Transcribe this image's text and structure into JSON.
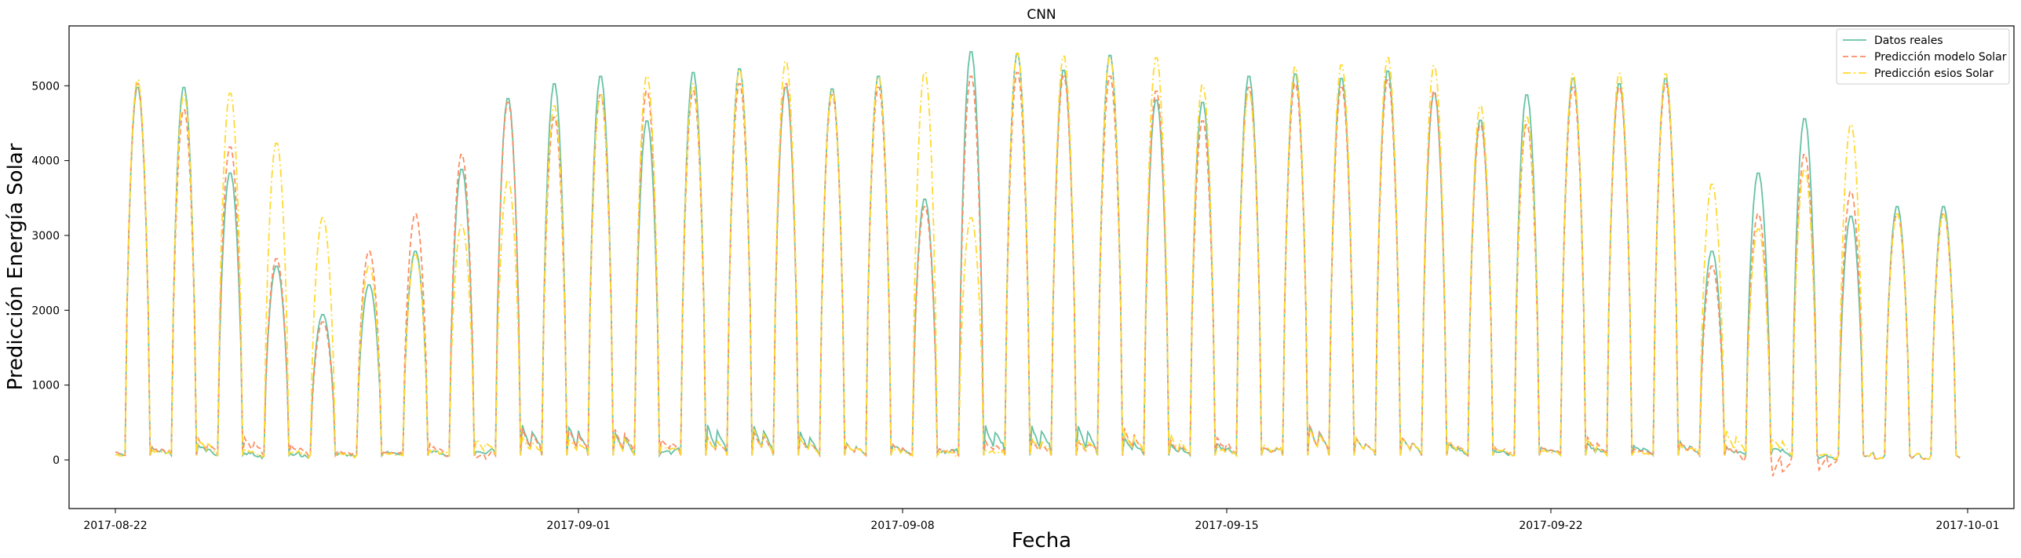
{
  "chart_data": {
    "type": "line",
    "title": "CNN",
    "xlabel": "Fecha",
    "ylabel": "Predicción Energía Solar",
    "x_range": [
      "2017-08-21",
      "2017-10-02"
    ],
    "ylim": [
      -650,
      5800
    ],
    "x_ticks": [
      "2017-08-22",
      "2017-09-01",
      "2017-09-08",
      "2017-09-15",
      "2017-09-22",
      "2017-10-01"
    ],
    "y_ticks": [
      0,
      1000,
      2000,
      3000,
      4000,
      5000
    ],
    "x_start": "2017-08-22",
    "x_end": "2017-09-30",
    "grid": false,
    "legend_position": "top-right",
    "day_values": {
      "dates": [
        "2017-08-22",
        "2017-08-23",
        "2017-08-24",
        "2017-08-25",
        "2017-08-26",
        "2017-08-27",
        "2017-08-28",
        "2017-08-29",
        "2017-08-30",
        "2017-08-31",
        "2017-09-01",
        "2017-09-02",
        "2017-09-03",
        "2017-09-04",
        "2017-09-05",
        "2017-09-06",
        "2017-09-07",
        "2017-09-08",
        "2017-09-09",
        "2017-09-10",
        "2017-09-11",
        "2017-09-12",
        "2017-09-13",
        "2017-09-14",
        "2017-09-15",
        "2017-09-16",
        "2017-09-17",
        "2017-09-18",
        "2017-09-19",
        "2017-09-20",
        "2017-09-21",
        "2017-09-22",
        "2017-09-23",
        "2017-09-24",
        "2017-09-25",
        "2017-09-26",
        "2017-09-27",
        "2017-09-28",
        "2017-09-29",
        "2017-09-30"
      ],
      "peak_real": [
        5000,
        5000,
        3850,
        2600,
        1950,
        2350,
        2800,
        3900,
        4850,
        5050,
        5150,
        4550,
        5200,
        5250,
        5000,
        4980,
        5150,
        3500,
        5480,
        5450,
        5230,
        5430,
        4830,
        4800,
        5150,
        5180,
        5120,
        5220,
        4920,
        4560,
        4900,
        5120,
        5050,
        5120,
        2800,
        3850,
        4580,
        3270,
        3400,
        3400
      ],
      "peak_model": [
        5050,
        4700,
        4200,
        2700,
        1850,
        2800,
        3300,
        4100,
        4800,
        4600,
        4900,
        4950,
        4950,
        5050,
        5050,
        4900,
        5000,
        3400,
        5150,
        5200,
        5150,
        5150,
        4950,
        4550,
        5000,
        5050,
        5000,
        5100,
        4950,
        4500,
        4500,
        5000,
        5000,
        5050,
        2600,
        3300,
        4100,
        3600,
        3300,
        3300
      ],
      "peak_esios": [
        5100,
        4900,
        4920,
        4250,
        3250,
        2600,
        2750,
        3150,
        3750,
        4750,
        4900,
        5150,
        5050,
        5230,
        5350,
        4950,
        5130,
        5200,
        3250,
        5460,
        5420,
        5400,
        5400,
        5030,
        4950,
        5270,
        5300,
        5400,
        5290,
        4750,
        4600,
        5180,
        5190,
        5180,
        3700,
        3100,
        3900,
        4500,
        3300,
        3300
      ],
      "night_real": [
        150,
        200,
        50,
        50,
        50,
        100,
        100,
        100,
        500,
        500,
        400,
        100,
        500,
        500,
        400,
        200,
        200,
        100,
        500,
        500,
        500,
        300,
        200,
        200,
        150,
        500,
        300,
        300,
        200,
        100,
        150,
        200,
        200,
        250,
        150,
        150,
        0,
        0,
        0,
        0
      ],
      "night_model": [
        150,
        300,
        300,
        200,
        100,
        100,
        200,
        0,
        450,
        450,
        450,
        300,
        300,
        400,
        300,
        200,
        200,
        150,
        250,
        250,
        250,
        450,
        250,
        300,
        150,
        500,
        300,
        300,
        250,
        150,
        150,
        300,
        150,
        250,
        150,
        -280,
        -180,
        0,
        0,
        0
      ],
      "night_esios": [
        100,
        300,
        100,
        100,
        50,
        50,
        100,
        300,
        300,
        300,
        350,
        200,
        300,
        450,
        300,
        200,
        150,
        100,
        100,
        300,
        300,
        400,
        350,
        150,
        200,
        450,
        300,
        300,
        250,
        150,
        100,
        250,
        100,
        200,
        400,
        300,
        50,
        0,
        0,
        0
      ]
    },
    "series": [
      {
        "name": "Datos reales",
        "color": "#66c2a5",
        "style": "solid"
      },
      {
        "name": "Predicción modelo Solar",
        "color": "#fc8d62",
        "style": "dashed"
      },
      {
        "name": "Predicción esios Solar",
        "color": "#ffd92f",
        "style": "dashdot"
      }
    ]
  }
}
